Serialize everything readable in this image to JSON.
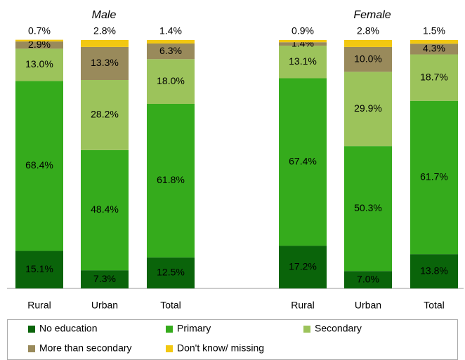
{
  "chart_data": [
    {
      "type": "bar",
      "stacked": true,
      "title": "Male",
      "categories": [
        "Rural",
        "Urban",
        "Total"
      ],
      "series": [
        {
          "name": "No education",
          "color": "#0a640a",
          "values": [
            15.1,
            7.3,
            12.5
          ],
          "value_labels": [
            "15.1%",
            "7.3%",
            "12.5%"
          ]
        },
        {
          "name": "Primary",
          "color": "#35ab1c",
          "values": [
            68.4,
            48.4,
            61.8
          ],
          "value_labels": [
            "68.4%",
            "48.4%",
            "61.8%"
          ]
        },
        {
          "name": "Secondary",
          "color": "#9cc35b",
          "values": [
            13.0,
            28.2,
            18.0
          ],
          "value_labels": [
            "13.0%",
            "28.2%",
            "18.0%"
          ]
        },
        {
          "name": "More than secondary",
          "color": "#998a5b",
          "values": [
            2.9,
            13.3,
            6.3
          ],
          "value_labels": [
            "2.9%",
            "13.3%",
            "6.3%"
          ]
        },
        {
          "name": "Don't know/ missing",
          "color": "#f2c811",
          "values": [
            0.7,
            2.8,
            1.4
          ],
          "value_labels": [
            "0.7%",
            "2.8%",
            "1.4%"
          ]
        }
      ]
    },
    {
      "type": "bar",
      "stacked": true,
      "title": "Female",
      "categories": [
        "Rural",
        "Urban",
        "Total"
      ],
      "series": [
        {
          "name": "No education",
          "color": "#0a640a",
          "values": [
            17.2,
            7.0,
            13.8
          ],
          "value_labels": [
            "17.2%",
            "7.0%",
            "13.8%"
          ]
        },
        {
          "name": "Primary",
          "color": "#35ab1c",
          "values": [
            67.4,
            50.3,
            61.7
          ],
          "value_labels": [
            "67.4%",
            "50.3%",
            "61.7%"
          ]
        },
        {
          "name": "Secondary",
          "color": "#9cc35b",
          "values": [
            13.1,
            29.9,
            18.7
          ],
          "value_labels": [
            "13.1%",
            "29.9%",
            "18.7%"
          ]
        },
        {
          "name": "More than secondary",
          "color": "#998a5b",
          "values": [
            1.4,
            10.0,
            4.3
          ],
          "value_labels": [
            "1.4%",
            "10.0%",
            "4.3%"
          ]
        },
        {
          "name": "Don't know/ missing",
          "color": "#f2c811",
          "values": [
            0.9,
            2.8,
            1.5
          ],
          "value_labels": [
            "0.9%",
            "2.8%",
            "1.5%"
          ]
        }
      ]
    }
  ]
}
